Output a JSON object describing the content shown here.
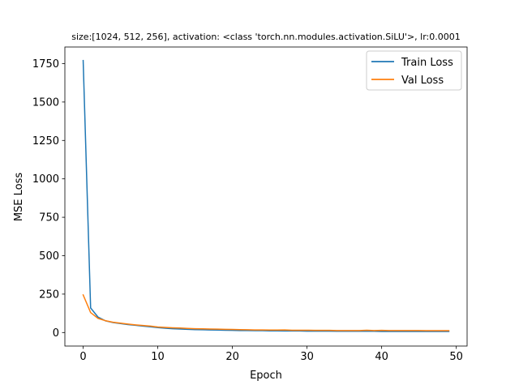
{
  "chart_data": {
    "type": "line",
    "title": "size:[1024, 512, 256], activation: <class 'torch.nn.modules.activation.SiLU'>, lr:0.0001",
    "xlabel": "Epoch",
    "ylabel": "MSE Loss",
    "xlim": [
      -2.45,
      51.45
    ],
    "ylim": [
      -88,
      1858
    ],
    "xticks": [
      0,
      10,
      20,
      30,
      40,
      50
    ],
    "yticks": [
      0,
      250,
      500,
      750,
      1000,
      1250,
      1500,
      1750
    ],
    "grid": false,
    "legend_position": "top-right",
    "x": [
      0,
      1,
      2,
      3,
      4,
      5,
      6,
      7,
      8,
      9,
      10,
      11,
      12,
      13,
      14,
      15,
      16,
      17,
      18,
      19,
      20,
      21,
      22,
      23,
      24,
      25,
      26,
      27,
      28,
      29,
      30,
      31,
      32,
      33,
      34,
      35,
      36,
      37,
      38,
      39,
      40,
      41,
      42,
      43,
      44,
      45,
      46,
      47,
      48,
      49
    ],
    "series": [
      {
        "name": "Train Loss",
        "color": "#1f77b4",
        "values": [
          1770,
          160,
          100,
          76,
          65,
          58,
          52,
          47,
          42,
          37,
          32,
          28,
          25,
          23,
          21,
          19,
          18,
          17,
          16,
          15,
          14,
          13,
          13,
          12,
          12,
          11,
          11,
          10,
          10,
          10,
          9,
          9,
          9,
          9,
          8,
          8,
          8,
          8,
          8,
          8,
          7,
          7,
          7,
          7,
          7,
          7,
          7,
          7,
          7,
          7
        ]
      },
      {
        "name": "Val Loss",
        "color": "#ff7f0e",
        "values": [
          245,
          130,
          92,
          77,
          67,
          61,
          55,
          50,
          46,
          42,
          36,
          33,
          31,
          29,
          27,
          25,
          24,
          23,
          22,
          21,
          20,
          19,
          18,
          17,
          17,
          16,
          16,
          17,
          15,
          15,
          15,
          14,
          14,
          14,
          13,
          13,
          13,
          13,
          15,
          13,
          14,
          13,
          13,
          13,
          13,
          13,
          12,
          12,
          12,
          12
        ]
      }
    ]
  }
}
